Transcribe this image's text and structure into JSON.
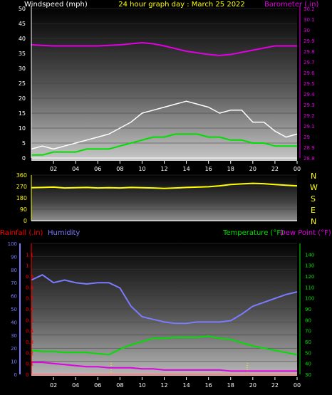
{
  "chart_data": [
    {
      "type": "line",
      "title": "24 hour graph day : March 25 2022",
      "ylabel": "Windspeed (mph)",
      "y2label": "Barometer (.in)",
      "x_ticks": [
        "02",
        "04",
        "06",
        "08",
        "10",
        "12",
        "14",
        "16",
        "18",
        "20",
        "22",
        "00"
      ],
      "ylim": [
        0,
        50
      ],
      "y_ticks": [
        0,
        5,
        10,
        15,
        20,
        25,
        30,
        35,
        40,
        45,
        50
      ],
      "y2lim": [
        28.8,
        30.2
      ],
      "y2_ticks": [
        "28.8",
        "28.9",
        "29",
        "29.1",
        "29.2",
        "29.3",
        "29.4",
        "29.5",
        "29.6",
        "29.7",
        "29.8",
        "29.9",
        "30",
        "30.1",
        "30.2"
      ],
      "colors": {
        "wind_gust": "#ffffff",
        "wind_avg": "#00e000",
        "barometer": "#e000e0",
        "ylabel": "#ffffff",
        "y2label": "#e000e0",
        "title": "#ffff00"
      },
      "series": [
        {
          "key": "barometer",
          "x": [
            0,
            2,
            4,
            6,
            8,
            9,
            10,
            11,
            12,
            14,
            16,
            17,
            18,
            20,
            22,
            24
          ],
          "y": [
            29.86,
            29.85,
            29.85,
            29.85,
            29.86,
            29.87,
            29.88,
            29.87,
            29.85,
            29.8,
            29.77,
            29.76,
            29.77,
            29.81,
            29.85,
            29.85
          ]
        },
        {
          "key": "wind_gust",
          "x": [
            0,
            1,
            2,
            3,
            4,
            5,
            6,
            7,
            8,
            9,
            10,
            11,
            12,
            13,
            14,
            15,
            16,
            17,
            18,
            19,
            20,
            21,
            22,
            23,
            24
          ],
          "y": [
            3,
            4,
            3,
            4,
            5,
            6,
            7,
            8,
            10,
            12,
            15,
            16,
            17,
            18,
            19,
            18,
            17,
            15,
            16,
            16,
            12,
            12,
            9,
            7,
            8
          ]
        },
        {
          "key": "wind_avg",
          "x": [
            0,
            1,
            2,
            3,
            4,
            5,
            6,
            7,
            8,
            9,
            10,
            11,
            12,
            13,
            14,
            15,
            16,
            17,
            18,
            19,
            20,
            21,
            22,
            23,
            24
          ],
          "y": [
            1,
            1,
            2,
            2,
            2,
            3,
            3,
            3,
            4,
            5,
            6,
            7,
            7,
            8,
            8,
            8,
            7,
            7,
            6,
            6,
            5,
            5,
            4,
            4,
            4
          ]
        }
      ]
    },
    {
      "type": "scatter",
      "x_ticks": [
        "02",
        "04",
        "06",
        "08",
        "10",
        "12",
        "14",
        "16",
        "18",
        "20",
        "22",
        "00"
      ],
      "ylim": [
        0,
        360
      ],
      "y_ticks": [
        0,
        90,
        180,
        270,
        360
      ],
      "direction_labels": [
        "N",
        "W",
        "S",
        "E",
        "N"
      ],
      "colors": {
        "direction": "#ffff00"
      },
      "series": [
        {
          "key": "wind_direction",
          "x": [
            0,
            1,
            2,
            3,
            4,
            5,
            6,
            7,
            8,
            9,
            10,
            11,
            12,
            13,
            14,
            15,
            16,
            17,
            18,
            19,
            20,
            21,
            22,
            23,
            24
          ],
          "y": [
            260,
            262,
            265,
            258,
            260,
            262,
            258,
            260,
            258,
            262,
            260,
            258,
            255,
            258,
            262,
            265,
            268,
            275,
            285,
            290,
            295,
            292,
            285,
            280,
            275
          ]
        }
      ]
    },
    {
      "type": "line",
      "ylabel": "Rainfall (.in)",
      "ylabel2": "Humidity",
      "y2label": "Temperature (°F)",
      "y2label2": "Dew Point (°F)",
      "x_ticks": [
        "02",
        "04",
        "06",
        "08",
        "10",
        "12",
        "14",
        "16",
        "18",
        "20",
        "22",
        "00"
      ],
      "humidity_lim": [
        0,
        100
      ],
      "humidity_ticks": [
        0,
        10,
        20,
        30,
        40,
        50,
        60,
        70,
        80,
        90,
        100
      ],
      "rain_lim": [
        0,
        1.2
      ],
      "rain_ticks": [
        "0",
        "0.1",
        "0.2",
        "0.3",
        "0.4",
        "0.5",
        "0.6",
        "0.7",
        "0.8",
        "0.9",
        "1",
        "1.1"
      ],
      "temp_lim": [
        30,
        150
      ],
      "temp_ticks": [
        30,
        40,
        50,
        60,
        70,
        80,
        90,
        100,
        110,
        120,
        130,
        140
      ],
      "dotted_markers_x": [
        7.2,
        19.5
      ],
      "colors": {
        "humidity": "#7b7bff",
        "temperature": "#00e000",
        "dewpoint": "#e000e0",
        "rain": "#ff0000",
        "rain_axis": "#ff0000",
        "humidity_axis": "#7b7bff",
        "temp_axis": "#00e000"
      },
      "series": [
        {
          "key": "humidity",
          "x": [
            0,
            1,
            1.5,
            2,
            3,
            4,
            5,
            6,
            7,
            8,
            9,
            10,
            11,
            12,
            13,
            14,
            15,
            16,
            17,
            18,
            19,
            20,
            21,
            22,
            23,
            24
          ],
          "y": [
            72,
            76,
            73,
            70,
            72,
            70,
            69,
            70,
            70,
            66,
            52,
            44,
            42,
            40,
            39,
            39,
            40,
            40,
            40,
            41,
            46,
            52,
            55,
            58,
            61,
            63
          ]
        },
        {
          "key": "temperature",
          "x": [
            0,
            1,
            2,
            3,
            4,
            5,
            6,
            7,
            8,
            9,
            10,
            11,
            12,
            13,
            14,
            15,
            16,
            17,
            18,
            19,
            20,
            21,
            22,
            23,
            24
          ],
          "y": [
            52,
            51,
            51,
            50,
            50,
            50,
            49,
            48,
            53,
            57,
            60,
            63,
            63,
            64,
            64,
            64,
            65,
            63,
            62,
            59,
            56,
            54,
            52,
            50,
            48
          ]
        },
        {
          "key": "dewpoint",
          "x": [
            0,
            1,
            2,
            3,
            4,
            5,
            6,
            7,
            8,
            9,
            10,
            11,
            12,
            13,
            14,
            15,
            16,
            17,
            18,
            19,
            20,
            21,
            22,
            23,
            24
          ],
          "y": [
            41,
            41,
            40,
            39,
            38,
            37,
            37,
            36,
            36,
            36,
            35,
            35,
            34,
            34,
            34,
            34,
            34,
            34,
            33,
            33,
            33,
            33,
            33,
            33,
            33
          ]
        },
        {
          "key": "rainfall",
          "x": [
            0,
            24
          ],
          "y": [
            0,
            0
          ]
        }
      ]
    }
  ]
}
